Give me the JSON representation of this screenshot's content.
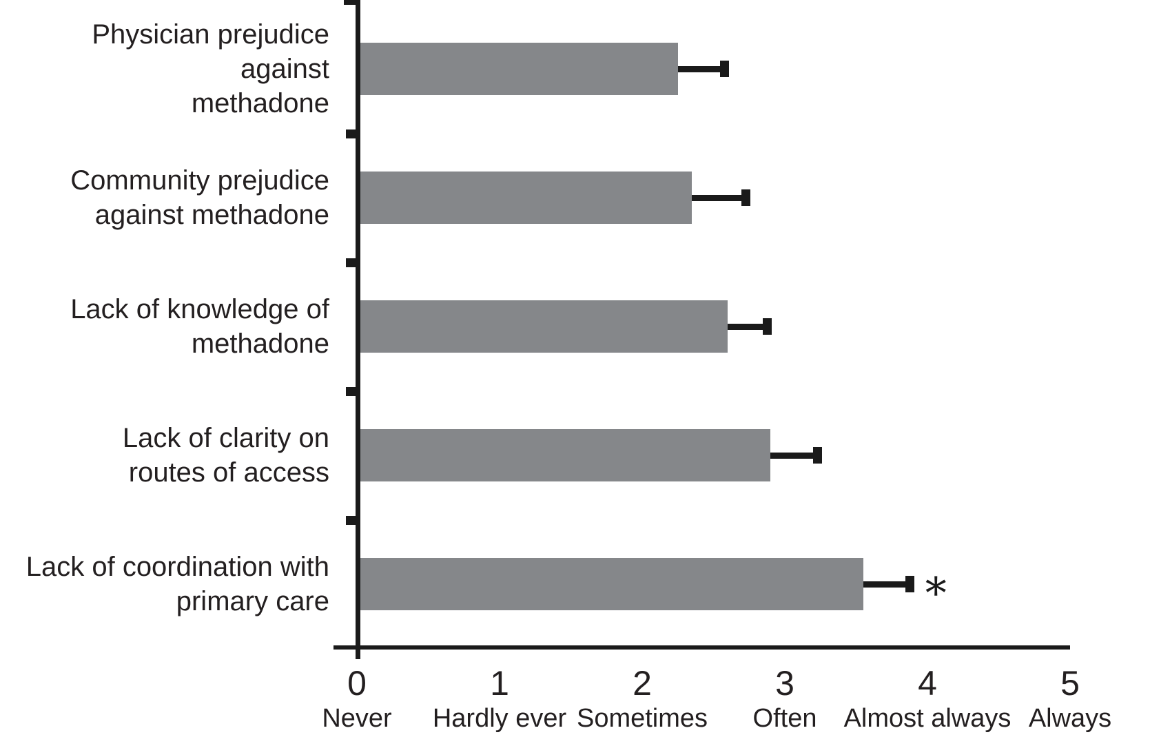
{
  "chart_data": {
    "type": "bar",
    "orientation": "horizontal",
    "title": "",
    "xlabel": "",
    "ylabel": "",
    "categories": [
      "Physician prejudice against methadone",
      "Community prejudice against methadone",
      "Lack of knowledge of methadone",
      "Lack of clarity on routes of access",
      "Lack of coordination with primary care"
    ],
    "category_label_lines": [
      [
        "Physician prejudice against",
        "methadone"
      ],
      [
        "Community prejudice",
        "against methadone"
      ],
      [
        "Lack of knowledge of",
        "methadone"
      ],
      [
        "Lack of clarity on",
        "routes of access"
      ],
      [
        "Lack of coordination with",
        "primary care"
      ]
    ],
    "values": [
      2.25,
      2.35,
      2.6,
      2.9,
      3.55
    ],
    "upper_errors": [
      0.33,
      0.38,
      0.28,
      0.33,
      0.33
    ],
    "xlim": [
      0,
      5
    ],
    "x_ticks": [
      {
        "value": 0,
        "number": "0",
        "word": "Never"
      },
      {
        "value": 1,
        "number": "1",
        "word": "Hardly ever"
      },
      {
        "value": 2,
        "number": "2",
        "word": "Sometimes"
      },
      {
        "value": 3,
        "number": "3",
        "word": "Often"
      },
      {
        "value": 4,
        "number": "4",
        "word": "Almost always"
      },
      {
        "value": 5,
        "number": "5",
        "word": "Always"
      }
    ],
    "grid": false,
    "legend": false,
    "annotations": [
      {
        "text": "∗",
        "category_index": 4,
        "position": "right-of-error-bar"
      }
    ],
    "colors": {
      "bar_fill": "#85878a",
      "error_bar": "#1a1a1a",
      "axis": "#1a1a1a",
      "text": "#231f20"
    }
  }
}
